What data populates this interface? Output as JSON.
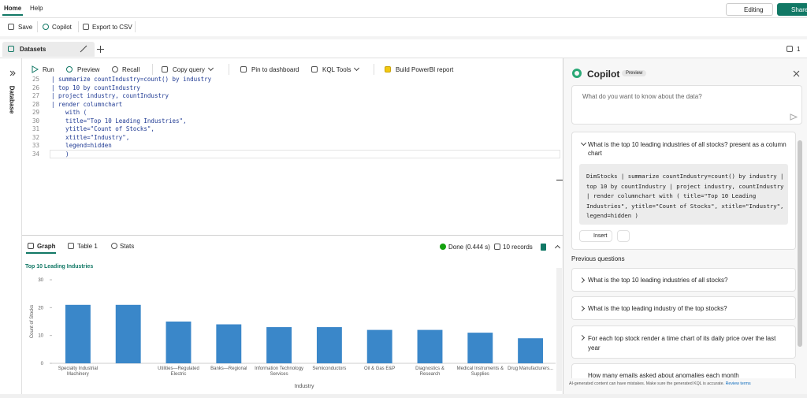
{
  "menu": {
    "tabs": [
      "Home",
      "Help"
    ],
    "editing": "Editing",
    "share": "Share"
  },
  "toolbar": {
    "items": [
      "Save",
      "Copilot",
      "Export to CSV"
    ]
  },
  "tabs": {
    "dataset": "Datasets",
    "count": 1
  },
  "sidebar": {
    "label": "Database"
  },
  "query_toolbar": {
    "items": [
      "Run",
      "Preview",
      "Recall",
      "Copy query",
      "Pin to dashboard",
      "KQL Tools",
      "Build PowerBI report"
    ]
  },
  "editor": {
    "lines": [
      {
        "number": 25,
        "text": "| summarize countIndustry=count() by industry"
      },
      {
        "number": 26,
        "text": "| top 10 by countIndustry"
      },
      {
        "number": 27,
        "text": "| project industry, countIndustry"
      },
      {
        "number": 28,
        "text": "| render columnchart"
      },
      {
        "number": 29,
        "text": "    with ("
      },
      {
        "number": 30,
        "text": "    title=\"Top 10 Leading Industries\","
      },
      {
        "number": 31,
        "text": "    ytitle=\"Count of Stocks\","
      },
      {
        "number": 32,
        "text": "    xtitle=\"Industry\","
      },
      {
        "number": 33,
        "text": "    legend=hidden"
      },
      {
        "number": 34,
        "text": "    )"
      }
    ]
  },
  "results": {
    "tabs": [
      "Graph",
      "Table 1",
      "Stats"
    ],
    "status": "Done (0.444 s)",
    "records": "10 records"
  },
  "chart_data": {
    "type": "bar",
    "title": "Top 10 Leading Industries",
    "x_label": "Industry",
    "y_label": "Count of Stocks",
    "categories": [
      "Specialty Industrial Machinery",
      null,
      "Utilities—Regulated Electric",
      "Banks—Regional",
      "Information Technology Services",
      "Semiconductors",
      "Oil & Gas E&P",
      "Diagnostics & Research",
      "Medical Instruments & Supplies",
      "Drug Manufacturers..."
    ],
    "values": [
      21,
      21,
      15,
      14,
      13,
      13,
      12,
      12,
      11,
      9
    ],
    "color": "#3a87c9",
    "ylim": [
      0,
      30
    ],
    "yticks": [
      0,
      10,
      20,
      30
    ],
    "grid": false
  },
  "copilot": {
    "title": "Copilot",
    "badge": "Preview",
    "placeholder": "What do you want to know about the data?",
    "question": "What is the top 10 leading industries of all stocks? present as a column chart",
    "answer_code": "DimStocks | summarize countIndustry=count() by industry | top 10 by countIndustry | project industry, countIndustry | render columnchart with ( title=\"Top 10 Leading Industries\", ytitle=\"Count of Stocks\", xtitle=\"Industry\", legend=hidden )",
    "insert": "Insert",
    "previous_heading": "Previous questions",
    "previous": [
      "What is the top 10 leading industries of all stocks?",
      "What is the top leading industry of the top stocks?",
      "For each top stock render a time chart of its daily price over the last year",
      "How many emails asked about anomalies each month"
    ],
    "disclaimer": "AI-generated content can have mistakes. Make sure the generated KQL is accurate.",
    "review": "Review terms"
  }
}
